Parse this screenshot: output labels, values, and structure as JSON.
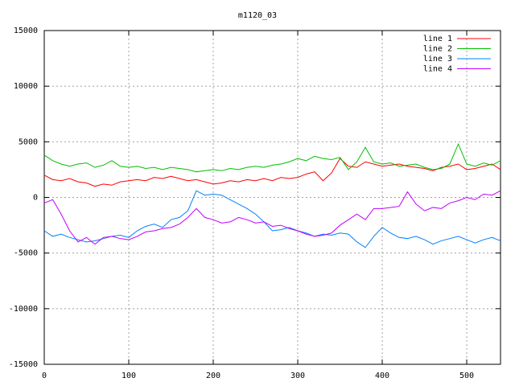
{
  "chart_data": {
    "type": "line",
    "title": "m1120_03",
    "x": [
      0,
      10,
      20,
      30,
      40,
      50,
      60,
      70,
      80,
      90,
      100,
      110,
      120,
      130,
      140,
      150,
      160,
      170,
      180,
      190,
      200,
      210,
      220,
      230,
      240,
      250,
      260,
      270,
      280,
      290,
      300,
      310,
      320,
      330,
      340,
      350,
      360,
      370,
      380,
      390,
      400,
      410,
      420,
      430,
      440,
      450,
      460,
      470,
      480,
      490,
      500,
      510,
      520,
      530,
      540
    ],
    "series": [
      {
        "name": "line 1",
        "color": "#ff0000",
        "values": [
          2000,
          1600,
          1500,
          1700,
          1400,
          1300,
          1000,
          1200,
          1100,
          1400,
          1500,
          1600,
          1500,
          1800,
          1700,
          1900,
          1700,
          1500,
          1600,
          1400,
          1200,
          1300,
          1500,
          1400,
          1600,
          1500,
          1700,
          1500,
          1800,
          1700,
          1800,
          2100,
          2300,
          1500,
          2200,
          3500,
          2800,
          2700,
          3200,
          3000,
          2800,
          2900,
          3000,
          2800,
          2700,
          2600,
          2400,
          2700,
          2800,
          3000,
          2500,
          2600,
          2800,
          3000,
          2500
        ]
      },
      {
        "name": "line 2",
        "color": "#00c000",
        "values": [
          3800,
          3300,
          3000,
          2800,
          3000,
          3100,
          2700,
          2900,
          3300,
          2800,
          2700,
          2800,
          2600,
          2700,
          2500,
          2700,
          2600,
          2500,
          2300,
          2400,
          2500,
          2400,
          2600,
          2500,
          2700,
          2800,
          2700,
          2900,
          3000,
          3200,
          3500,
          3300,
          3700,
          3500,
          3400,
          3600,
          2500,
          3200,
          4500,
          3200,
          3000,
          3100,
          2800,
          2900,
          3000,
          2700,
          2500,
          2600,
          3000,
          4800,
          3000,
          2800,
          3100,
          2900,
          3300
        ]
      },
      {
        "name": "line 3",
        "color": "#0080ff",
        "values": [
          -3000,
          -3500,
          -3300,
          -3600,
          -3800,
          -4000,
          -3900,
          -3700,
          -3500,
          -3400,
          -3600,
          -3000,
          -2600,
          -2400,
          -2700,
          -2000,
          -1800,
          -1200,
          600,
          200,
          300,
          200,
          -200,
          -600,
          -1000,
          -1500,
          -2200,
          -3000,
          -2900,
          -2700,
          -3000,
          -3200,
          -3500,
          -3300,
          -3400,
          -3200,
          -3300,
          -4000,
          -4500,
          -3500,
          -2700,
          -3200,
          -3600,
          -3700,
          -3500,
          -3800,
          -4200,
          -3900,
          -3700,
          -3500,
          -3800,
          -4100,
          -3800,
          -3600,
          -3900
        ]
      },
      {
        "name": "line 4",
        "color": "#c000ff",
        "values": [
          -500,
          -200,
          -1500,
          -3000,
          -4000,
          -3600,
          -4200,
          -3600,
          -3500,
          -3700,
          -3800,
          -3500,
          -3100,
          -3000,
          -2800,
          -2700,
          -2400,
          -1800,
          -1000,
          -1800,
          -2000,
          -2300,
          -2200,
          -1800,
          -2000,
          -2300,
          -2200,
          -2600,
          -2500,
          -2800,
          -3000,
          -3300,
          -3500,
          -3400,
          -3200,
          -2500,
          -2000,
          -1500,
          -2000,
          -1000,
          -1000,
          -900,
          -800,
          500,
          -600,
          -1200,
          -900,
          -1000,
          -500,
          -300,
          0,
          -200,
          300,
          200,
          600
        ]
      }
    ],
    "xlim": [
      0,
      540
    ],
    "xticks": [
      0,
      100,
      200,
      300,
      400,
      500
    ],
    "ylim": [
      -15000,
      15000
    ],
    "yticks": [
      -15000,
      -10000,
      -5000,
      0,
      5000,
      10000,
      15000
    ],
    "grid": true,
    "legend": "top-right"
  }
}
